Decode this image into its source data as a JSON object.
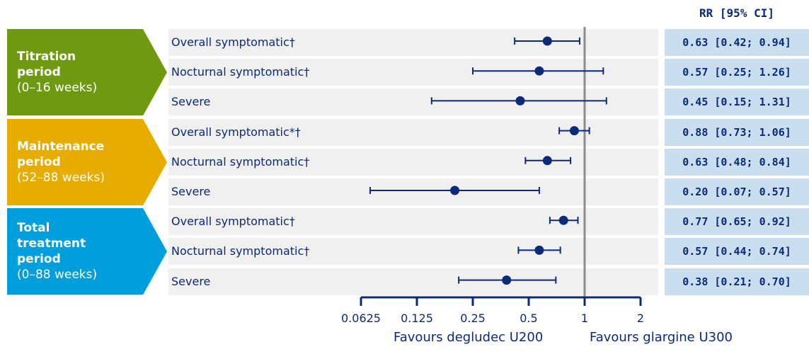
{
  "header": {
    "rr_label": "RR [95% CI]"
  },
  "periods": [
    {
      "title": "Titration\nperiod",
      "subtitle": "(0–16 weeks)",
      "color": "#6e9a12"
    },
    {
      "title": "Maintenance\nperiod",
      "subtitle": "(52–88 weeks)",
      "color": "#e6ac00"
    },
    {
      "title": "Total\ntreatment\nperiod",
      "subtitle": "(0–88 weeks)",
      "color": "#009fdb"
    }
  ],
  "chart_data": {
    "type": "forest",
    "x_scale": "log2",
    "xlim": [
      0.0625,
      2
    ],
    "reference_line": 1,
    "ticks": [
      "0.0625",
      "0.125",
      "0.25",
      "0.5",
      "1",
      "2"
    ],
    "favours_left": "Favours degludec U200",
    "favours_right": "Favours glargine U300",
    "rows": [
      {
        "period": 0,
        "label": "Overall symptomatic†",
        "rr": 0.63,
        "lo": 0.42,
        "hi": 0.94,
        "text": "0.63 [0.42; 0.94]"
      },
      {
        "period": 0,
        "label": "Nocturnal symptomatic†",
        "rr": 0.57,
        "lo": 0.25,
        "hi": 1.26,
        "text": "0.57 [0.25; 1.26]"
      },
      {
        "period": 0,
        "label": "Severe",
        "rr": 0.45,
        "lo": 0.15,
        "hi": 1.31,
        "text": "0.45 [0.15; 1.31]"
      },
      {
        "period": 1,
        "label": "Overall symptomatic*†",
        "rr": 0.88,
        "lo": 0.73,
        "hi": 1.06,
        "text": "0.88 [0.73; 1.06]"
      },
      {
        "period": 1,
        "label": "Nocturnal symptomatic†",
        "rr": 0.63,
        "lo": 0.48,
        "hi": 0.84,
        "text": "0.63 [0.48; 0.84]"
      },
      {
        "period": 1,
        "label": "Severe",
        "rr": 0.2,
        "lo": 0.07,
        "hi": 0.57,
        "text": "0.20 [0.07; 0.57]"
      },
      {
        "period": 2,
        "label": "Overall symptomatic†",
        "rr": 0.77,
        "lo": 0.65,
        "hi": 0.92,
        "text": "0.77 [0.65; 0.92]"
      },
      {
        "period": 2,
        "label": "Nocturnal symptomatic†",
        "rr": 0.57,
        "lo": 0.44,
        "hi": 0.74,
        "text": "0.57 [0.44; 0.74]"
      },
      {
        "period": 2,
        "label": "Severe",
        "rr": 0.38,
        "lo": 0.21,
        "hi": 0.7,
        "text": "0.38 [0.21; 0.70]"
      }
    ]
  },
  "colors": {
    "marker": "#0c2a78",
    "reference_line": "#8c8c8c",
    "row_bg": "#f0f0f0",
    "rr_bg": "#c9dff0"
  }
}
